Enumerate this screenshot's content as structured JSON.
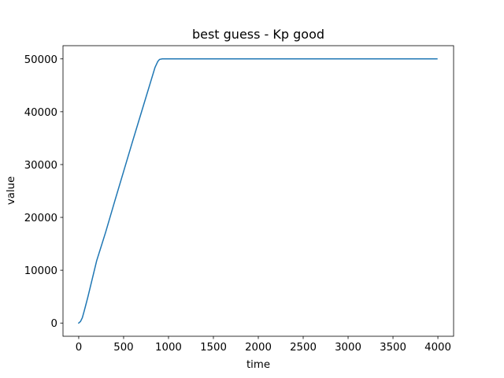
{
  "chart_data": {
    "type": "line",
    "title": "best guess - Kp good",
    "xlabel": "time",
    "ylabel": "value",
    "xlim": [
      -175,
      4175
    ],
    "ylim": [
      -2500,
      52500
    ],
    "xticks": [
      0,
      500,
      1000,
      1500,
      2000,
      2500,
      3000,
      3500,
      4000
    ],
    "yticks": [
      0,
      10000,
      20000,
      30000,
      40000,
      50000
    ],
    "grid": false,
    "legend": "none",
    "series": [
      {
        "color": "#1f77b4",
        "points": [
          [
            0,
            0
          ],
          [
            20,
            300
          ],
          [
            40,
            1000
          ],
          [
            60,
            2200
          ],
          [
            80,
            3500
          ],
          [
            100,
            4800
          ],
          [
            150,
            8300
          ],
          [
            200,
            11800
          ],
          [
            300,
            17200
          ],
          [
            400,
            23000
          ],
          [
            500,
            28700
          ],
          [
            600,
            34400
          ],
          [
            700,
            40000
          ],
          [
            800,
            45600
          ],
          [
            850,
            48400
          ],
          [
            880,
            49500
          ],
          [
            900,
            49900
          ],
          [
            930,
            50000
          ],
          [
            1000,
            50000
          ],
          [
            2000,
            50000
          ],
          [
            3000,
            50000
          ],
          [
            3990,
            50000
          ]
        ]
      }
    ]
  }
}
